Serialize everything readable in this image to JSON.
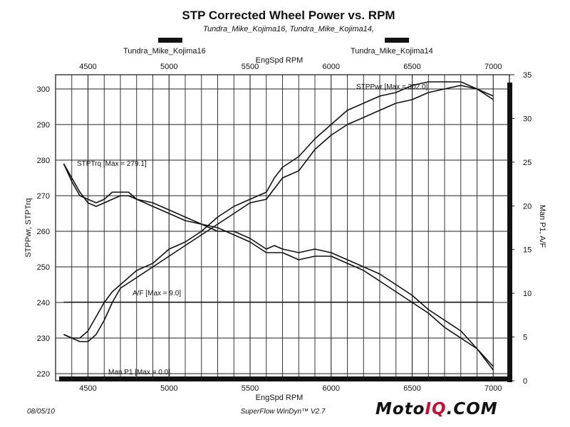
{
  "header": {
    "title": "STP Corrected Wheel Power vs. RPM",
    "subtitle": "Tundra_Mike_Kojima16, Tundra_Mike_Kojima14,"
  },
  "footer": {
    "date": "08/05/10",
    "software": "SuperFlow WinDyn™ V2.7",
    "logo_main": "Moto",
    "logo_accent": "IQ",
    "logo_tail": ".COM"
  },
  "colors": {
    "ink": "#111111",
    "grid": "#222222",
    "logo_accent": "#c8102e"
  },
  "chart_data": {
    "type": "line",
    "title": "STP Corrected Wheel Power vs. RPM",
    "legend": [
      {
        "label": "Tundra_Mike_Kojima16",
        "placement": "top-left"
      },
      {
        "label": "Tundra_Mike_Kojima14",
        "placement": "top-right"
      }
    ],
    "xlabel": "EngSpd  RPM",
    "xlabel_top": "EngSpd  RPM",
    "ylabel_left": "STPPwr, STPTrq",
    "ylabel_right": "Man P1,  A/F",
    "xlim": [
      4300,
      7100
    ],
    "ylim_left": [
      218,
      304
    ],
    "ylim_right": [
      0,
      35
    ],
    "x_ticks": [
      4500,
      5000,
      5500,
      6000,
      6500,
      7000
    ],
    "y_ticks_left": [
      220,
      230,
      240,
      250,
      260,
      270,
      280,
      290,
      300
    ],
    "y_ticks_right": [
      0,
      5,
      10,
      15,
      20,
      25,
      30,
      35
    ],
    "grid": true,
    "annotations": [
      {
        "text": "STPPwr [Max = 302.0]",
        "series": "power"
      },
      {
        "text": "STPTrq [Max = 279.1]",
        "series": "torque"
      },
      {
        "text": "A/F   [Max = 9.0]",
        "series": "af"
      },
      {
        "text": "Man P1 [Max = 0.0]",
        "series": "manp1"
      }
    ],
    "series": [
      {
        "axis": "left",
        "x": [
          4350,
          4400,
          4450,
          4500,
          4550,
          4600,
          4650,
          4700,
          4800,
          4900,
          5000,
          5100,
          5200,
          5300,
          5400,
          5500,
          5600,
          5650,
          5700,
          5800,
          5900,
          6000,
          6100,
          6200,
          6300,
          6400,
          6500,
          6600,
          6700,
          6800,
          6900,
          7000
        ],
        "values": [
          231,
          230,
          229,
          229,
          231,
          235,
          240,
          244,
          247,
          250,
          253,
          256,
          259,
          262,
          265,
          268,
          269,
          272,
          275,
          277,
          283,
          287,
          290,
          292,
          294,
          296,
          297,
          299,
          300,
          301,
          300,
          298
        ]
      },
      {
        "axis": "left",
        "x": [
          4350,
          4400,
          4450,
          4500,
          4550,
          4600,
          4650,
          4700,
          4800,
          4900,
          5000,
          5100,
          5200,
          5300,
          5400,
          5500,
          5600,
          5650,
          5700,
          5800,
          5900,
          6000,
          6100,
          6200,
          6300,
          6400,
          6500,
          6600,
          6700,
          6800,
          6900,
          7000
        ],
        "values": [
          231,
          230,
          230,
          232,
          236,
          240,
          243,
          245,
          249,
          251,
          255,
          257,
          260,
          264,
          267,
          269,
          271,
          275,
          278,
          281,
          286,
          290,
          294,
          296,
          298,
          299,
          301,
          302,
          302,
          302,
          300,
          297
        ]
      },
      {
        "axis": "left",
        "x": [
          4350,
          4400,
          4450,
          4500,
          4550,
          4600,
          4650,
          4700,
          4750,
          4800,
          4900,
          5000,
          5100,
          5200,
          5300,
          5400,
          5500,
          5600,
          5650,
          5700,
          5800,
          5900,
          6000,
          6100,
          6200,
          6300,
          6400,
          6500,
          6600,
          6700,
          6800,
          6900,
          7000
        ],
        "values": [
          279,
          275,
          271,
          268,
          267,
          268,
          269,
          270,
          270,
          269,
          268,
          266,
          264,
          262,
          261,
          259,
          257,
          254,
          254,
          254,
          252,
          253,
          253,
          251,
          249,
          246,
          243,
          240,
          237,
          233,
          230,
          227,
          222
        ]
      },
      {
        "axis": "left",
        "x": [
          4350,
          4400,
          4450,
          4500,
          4550,
          4600,
          4650,
          4700,
          4750,
          4800,
          4900,
          5000,
          5100,
          5200,
          5300,
          5400,
          5500,
          5600,
          5650,
          5700,
          5800,
          5900,
          6000,
          6100,
          6200,
          6300,
          6400,
          6500,
          6600,
          6700,
          6800,
          6900,
          7000
        ],
        "values": [
          279,
          274,
          270,
          269,
          268,
          269,
          271,
          271,
          271,
          269,
          267,
          265,
          263,
          262,
          260,
          260,
          258,
          255,
          256,
          255,
          254,
          255,
          254,
          252,
          250,
          248,
          245,
          242,
          238,
          235,
          232,
          227,
          221
        ]
      },
      {
        "axis": "right",
        "x": [
          4350,
          7000
        ],
        "values": [
          9.0,
          9.0
        ]
      },
      {
        "axis": "right",
        "x": [
          4350,
          7000
        ],
        "values": [
          0.0,
          0.0
        ]
      }
    ]
  }
}
